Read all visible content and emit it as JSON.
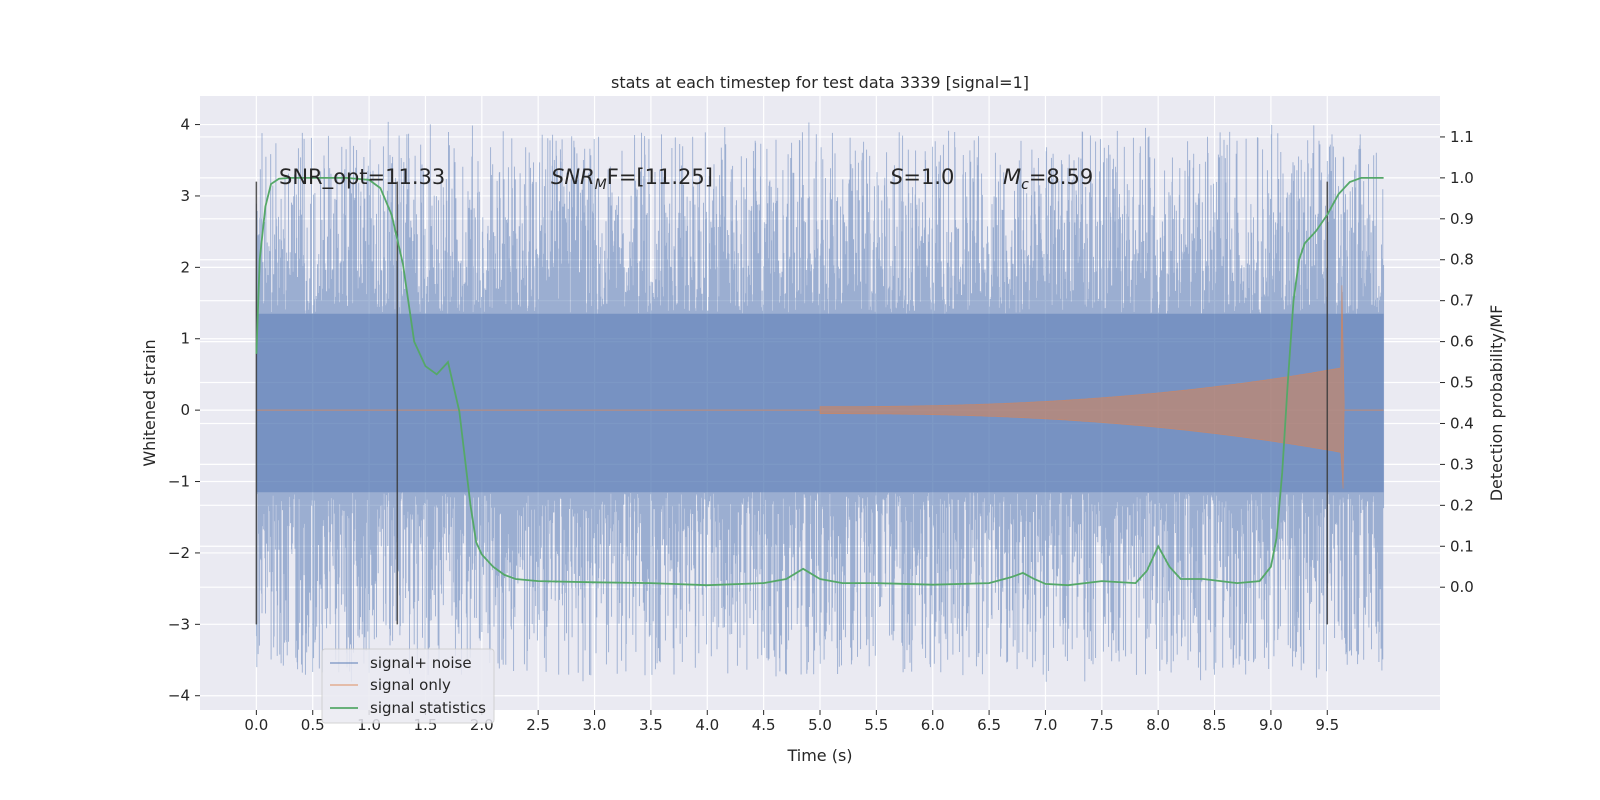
{
  "chart_data": {
    "type": "line",
    "title": "stats at each timestep for test data 3339 [signal=1]",
    "xlabel": "Time (s)",
    "ylabel": "Whitened strain",
    "y2label": "Detection probability/MF",
    "xlim": [
      -0.5,
      10.5
    ],
    "ylim": [
      -4.2,
      4.4
    ],
    "y2lim": [
      -0.3,
      1.2
    ],
    "x_ticks": [
      0.0,
      0.5,
      1.0,
      1.5,
      2.0,
      2.5,
      3.0,
      3.5,
      4.0,
      4.5,
      5.0,
      5.5,
      6.0,
      6.5,
      7.0,
      7.5,
      8.0,
      8.5,
      9.0,
      9.5
    ],
    "x_tick_labels": [
      "0.0",
      "0.5",
      "1.0",
      "1.5",
      "2.0",
      "2.5",
      "3.0",
      "3.5",
      "4.0",
      "4.5",
      "5.0",
      "5.5",
      "6.0",
      "6.5",
      "7.0",
      "7.5",
      "8.0",
      "8.5",
      "9.0",
      "9.5"
    ],
    "y_ticks": [
      -4,
      -3,
      -2,
      -1,
      0,
      1,
      2,
      3,
      4
    ],
    "y_tick_labels": [
      "−4",
      "−3",
      "−2",
      "−1",
      "0",
      "1",
      "2",
      "3",
      "4"
    ],
    "y2_ticks": [
      0.0,
      0.1,
      0.2,
      0.3,
      0.4,
      0.5,
      0.6,
      0.7,
      0.8,
      0.9,
      1.0,
      1.1
    ],
    "y2_tick_labels": [
      "0.0",
      "0.1",
      "0.2",
      "0.3",
      "0.4",
      "0.5",
      "0.6",
      "0.7",
      "0.8",
      "0.9",
      "1.0",
      "1.1"
    ],
    "grid": true,
    "legend_position": "lower-left",
    "annotations": {
      "snr_opt": "SNR_opt=11.33",
      "snr_mf_base": "SNR",
      "snr_mf_sub": "M",
      "snr_mf_rest": "F=[11.25]",
      "s_label": "S",
      "s_rest": "=1.0",
      "mc_base": "M",
      "mc_sub": "c",
      "mc_rest": "=8.59"
    },
    "vertical_markers": [
      {
        "x": 0.0,
        "y_range": [
          -3,
          3.2
        ]
      },
      {
        "x": 1.25,
        "y_range": [
          -3,
          3.2
        ]
      },
      {
        "x": 9.5,
        "y_range": [
          -3,
          3.2
        ]
      }
    ],
    "series": [
      {
        "name": "signal+ noise",
        "kind": "noise",
        "color": "#4c72b0",
        "x_range": [
          0.0,
          10.0
        ],
        "band_upper": 1.35,
        "band_lower": -1.15,
        "max": 4.05,
        "min": -3.85
      },
      {
        "name": "signal only",
        "kind": "chirp",
        "color": "#dd8452",
        "x_range": [
          0.0,
          10.0
        ],
        "start": 5.0,
        "merger": 9.65,
        "peak_upper": 1.75,
        "peak_lower": -1.1
      },
      {
        "name": "signal statistics",
        "kind": "line",
        "color": "#55a868",
        "axis": "right",
        "x": [
          0.0,
          0.03,
          0.08,
          0.13,
          0.2,
          0.3,
          0.5,
          0.8,
          1.0,
          1.1,
          1.2,
          1.3,
          1.4,
          1.5,
          1.6,
          1.7,
          1.8,
          1.9,
          1.95,
          2.0,
          2.1,
          2.2,
          2.3,
          2.5,
          3.0,
          3.5,
          4.0,
          4.5,
          4.7,
          4.85,
          5.0,
          5.2,
          5.5,
          6.0,
          6.5,
          6.7,
          6.8,
          6.9,
          7.0,
          7.2,
          7.5,
          7.8,
          7.9,
          8.0,
          8.1,
          8.2,
          8.4,
          8.7,
          8.9,
          9.0,
          9.05,
          9.1,
          9.15,
          9.2,
          9.25,
          9.3,
          9.4,
          9.5,
          9.6,
          9.7,
          9.8,
          9.9,
          10.0
        ],
        "values": [
          0.57,
          0.8,
          0.93,
          0.985,
          0.998,
          1.0,
          1.0,
          1.0,
          0.995,
          0.975,
          0.91,
          0.79,
          0.6,
          0.54,
          0.52,
          0.55,
          0.43,
          0.2,
          0.11,
          0.08,
          0.05,
          0.03,
          0.02,
          0.015,
          0.012,
          0.01,
          0.005,
          0.01,
          0.02,
          0.045,
          0.02,
          0.01,
          0.01,
          0.006,
          0.01,
          0.025,
          0.035,
          0.02,
          0.008,
          0.005,
          0.015,
          0.01,
          0.04,
          0.1,
          0.05,
          0.02,
          0.02,
          0.01,
          0.015,
          0.05,
          0.12,
          0.28,
          0.5,
          0.7,
          0.8,
          0.84,
          0.87,
          0.91,
          0.96,
          0.99,
          1.0,
          1.0,
          1.0
        ]
      }
    ]
  }
}
